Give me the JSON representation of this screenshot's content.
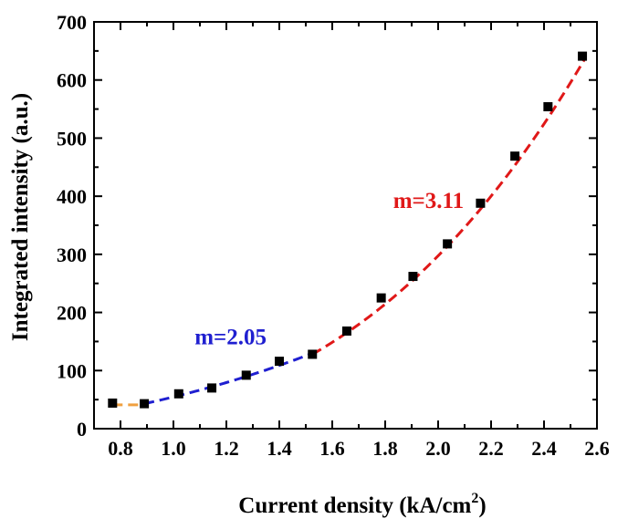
{
  "chart_data": {
    "type": "scatter",
    "xlabel": "Current density (kA/cm",
    "xlabel_sup": "2",
    "xlabel_close": ")",
    "ylabel": "Integrated intensity (a.u.)",
    "xlim": [
      0.7,
      2.6
    ],
    "ylim": [
      0,
      700
    ],
    "xticks": [
      "0.8",
      "1.0",
      "1.2",
      "1.4",
      "1.6",
      "1.8",
      "2.0",
      "2.2",
      "2.4",
      "2.6"
    ],
    "yticks": [
      "0",
      "100",
      "200",
      "300",
      "400",
      "500",
      "600",
      "700"
    ],
    "grid": false,
    "points": {
      "x": [
        0.77,
        0.89,
        1.02,
        1.145,
        1.275,
        1.4,
        1.525,
        1.655,
        1.785,
        1.905,
        2.035,
        2.16,
        2.29,
        2.415,
        2.545
      ],
      "y": [
        44,
        43,
        60,
        70,
        92,
        116,
        128,
        168,
        225,
        262,
        318,
        388,
        469,
        554,
        641
      ],
      "color": "#000000"
    },
    "fits": [
      {
        "x_range": [
          0.77,
          0.9
        ],
        "exponent": 0,
        "level": 41,
        "color": "#f0a040"
      },
      {
        "x_range": [
          0.89,
          1.53
        ],
        "exponent": 2.05,
        "anchor": [
          0.89,
          43
        ],
        "color": "#1f1fd0"
      },
      {
        "x_range": [
          1.525,
          2.555
        ],
        "exponent": 3.11,
        "anchor": [
          1.525,
          128
        ],
        "color": "#e01818"
      }
    ],
    "annotations": [
      {
        "text": "m=2.05",
        "x": 1.08,
        "y": 145,
        "color": "#1f1fd0"
      },
      {
        "text": "m=3.11",
        "x": 1.83,
        "y": 380,
        "color": "#e01818"
      }
    ]
  }
}
